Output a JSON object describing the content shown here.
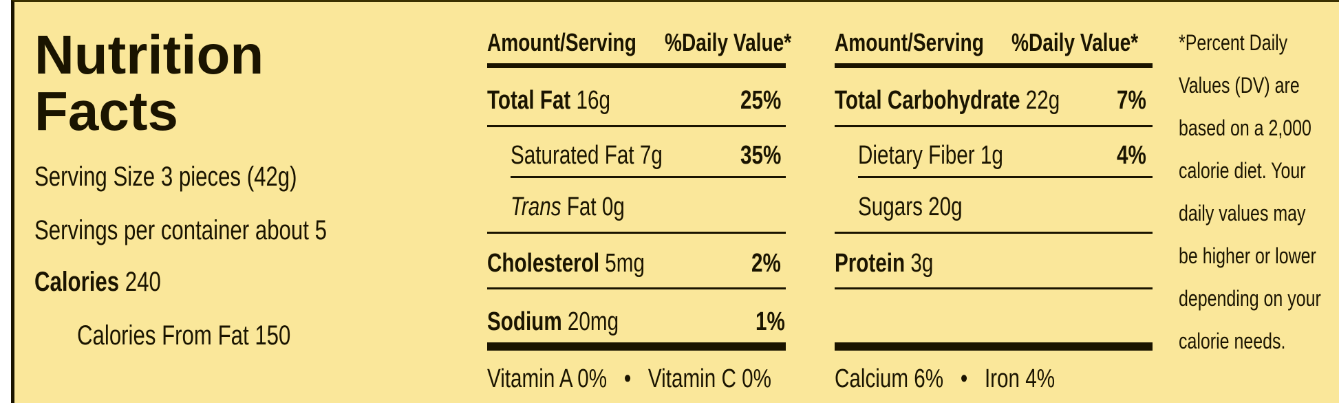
{
  "title": [
    "Nutrition",
    "Facts"
  ],
  "serving_size": "Serving Size 3 pieces (42g)",
  "servings_per_container": "Servings per container about 5",
  "calories": {
    "label": "Calories",
    "value": "240"
  },
  "calories_from_fat": "Calories From Fat 150",
  "headers": {
    "amount": "Amount/Serving",
    "dv": "%Daily Value*"
  },
  "left_rows": [
    {
      "name": "Total Fat",
      "amount": "16g",
      "dv": "25%"
    },
    {
      "name": "Saturated Fat",
      "amount": "7g",
      "dv": "35%"
    },
    {
      "name_italic": "Trans",
      "name": "Fat",
      "amount": "0g",
      "dv": ""
    },
    {
      "name": "Cholesterol",
      "amount": "5mg",
      "dv": "2%"
    },
    {
      "name": "Sodium",
      "amount": "20mg",
      "dv": "1%"
    }
  ],
  "right_rows": [
    {
      "name": "Total Carbohydrate",
      "amount": "22g",
      "dv": "7%"
    },
    {
      "name": "Dietary Fiber",
      "amount": "1g",
      "dv": "4%"
    },
    {
      "name": "Sugars",
      "amount": "20g",
      "dv": ""
    },
    {
      "name": "Protein",
      "amount": "3g",
      "dv": ""
    }
  ],
  "vitamins": {
    "a": "Vitamin A 0%",
    "c": "Vitamin C 0%",
    "bullet": "•"
  },
  "minerals": {
    "calcium": "Calcium 6%",
    "iron": "Iron 4%",
    "bullet": "•"
  },
  "footnote": [
    "*Percent Daily",
    "Values (DV) are",
    "based on a 2,000",
    "calorie diet. Your",
    "daily values may",
    "be higher or lower",
    "depending on your",
    "calorie needs."
  ]
}
